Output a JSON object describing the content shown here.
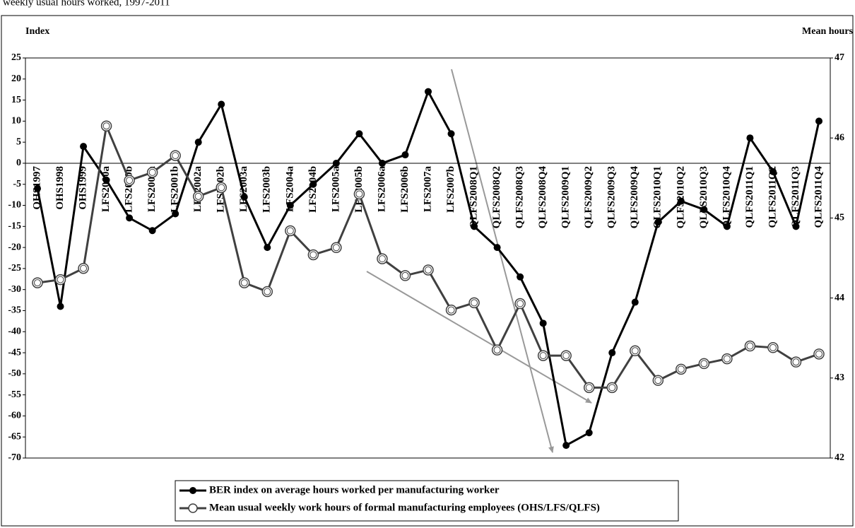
{
  "chart_data": {
    "type": "line",
    "title": "weekly usual hours worked, 1997-2011",
    "y_label": "Index",
    "y2_label": "Mean hours",
    "categories": [
      "OHS1997",
      "OHS1998",
      "OHS1999",
      "LFS2000a",
      "LFS2000b",
      "LFS2001a",
      "LFS2001b",
      "LFS2002a",
      "LFS2002b",
      "LFS2003a",
      "LFS2003b",
      "LFS2004a",
      "LFS2004b",
      "LFS2005a",
      "LFS2005b",
      "LFS2006a",
      "LFS2006b",
      "LFS2007a",
      "LFS2007b",
      "QLFS2008Q1",
      "QLFS2008Q2",
      "QLFS2008Q3",
      "QLFS2008Q4",
      "QLFS2009Q1",
      "QLFS2009Q2",
      "QLFS2009Q3",
      "QLFS2009Q4",
      "QLFS2010Q1",
      "QLFS2010Q2",
      "QLFS2010Q3",
      "QLFS2010Q4",
      "QLFS2011Q1",
      "QLFS2011Q2",
      "QLFS2011Q3",
      "QLFS2011Q4"
    ],
    "series": [
      {
        "name": "BER index on average hours worked per manufacturing worker",
        "color": "#000000",
        "marker": "filled",
        "axis": "y",
        "values": [
          -6,
          -34,
          4,
          -4,
          -13,
          -16,
          -12,
          5,
          14,
          -8,
          -20,
          -10,
          -5,
          0,
          7,
          0,
          2,
          17,
          7,
          -15,
          -20,
          -27,
          -38,
          -67,
          -64,
          -45,
          -33,
          -14,
          -9,
          -11,
          -15,
          6,
          -2,
          -15,
          10
        ]
      },
      {
        "name": "Mean usual weekly work hours of formal manufacturing employees (OHS/LFS/QLFS)",
        "color": "#404040",
        "marker": "open",
        "axis": "y2",
        "values": [
          44.19,
          44.23,
          44.37,
          46.15,
          45.47,
          45.57,
          45.78,
          45.27,
          45.38,
          44.19,
          44.08,
          44.84,
          44.54,
          44.63,
          45.3,
          44.49,
          44.28,
          44.35,
          43.85,
          43.94,
          43.35,
          43.93,
          43.28,
          43.28,
          42.88,
          42.88,
          43.34,
          42.97,
          43.11,
          43.18,
          43.24,
          43.4,
          43.38,
          43.2,
          43.3
        ]
      }
    ],
    "ylim": [
      -70,
      25
    ],
    "yticks": [
      -70,
      -65,
      -60,
      -55,
      -50,
      -45,
      -40,
      -35,
      -30,
      -25,
      -20,
      -15,
      -10,
      -5,
      0,
      5,
      10,
      15,
      20,
      25
    ],
    "y2lim": [
      42,
      47
    ],
    "y2ticks": [
      42,
      43,
      44,
      45,
      46,
      47
    ],
    "legend": "bottom"
  }
}
